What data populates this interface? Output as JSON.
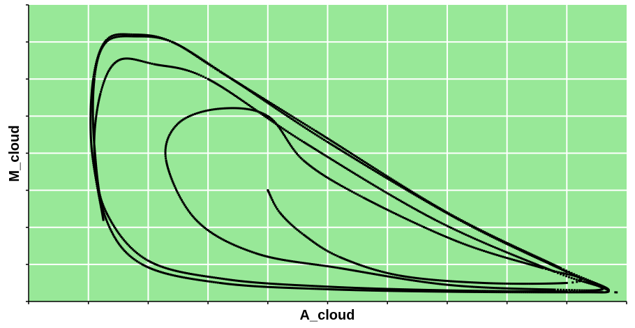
{
  "chart_data": {
    "type": "scatter",
    "xlabel": "A_cloud",
    "ylabel": "M_cloud",
    "xlim": [
      0,
      100
    ],
    "ylim": [
      0,
      80
    ],
    "x_ticks": [
      0,
      10,
      20,
      30,
      40,
      50,
      60,
      70,
      80,
      90,
      100
    ],
    "y_ticks": [
      0,
      10,
      20,
      30,
      40,
      50,
      60,
      70,
      80
    ],
    "tick_labels_shown": false,
    "grid": true,
    "colors": {
      "plot_background": "#98e898",
      "grid": "#ffffff",
      "points": "#000000",
      "axes": "#000000"
    },
    "series": [
      {
        "marker": "small-square",
        "start": [
          40,
          30
        ],
        "points": [
          [
            40,
            30
          ],
          [
            42,
            24
          ],
          [
            46,
            18
          ],
          [
            52,
            12
          ],
          [
            62,
            7
          ],
          [
            76,
            5
          ],
          [
            90,
            5
          ],
          [
            92,
            6.5
          ],
          [
            86,
            9
          ],
          [
            72,
            16
          ],
          [
            56,
            28
          ],
          [
            46,
            38
          ],
          [
            40,
            50
          ],
          [
            32,
            52
          ],
          [
            25,
            48
          ],
          [
            23,
            38
          ],
          [
            28,
            22
          ],
          [
            38,
            13
          ],
          [
            52,
            9
          ],
          [
            70,
            4.5
          ],
          [
            88,
            3.2
          ],
          [
            96,
            3.5
          ],
          [
            88,
            8
          ],
          [
            68,
            22
          ],
          [
            46,
            43
          ],
          [
            30,
            60
          ],
          [
            21,
            64
          ],
          [
            15,
            65
          ],
          [
            12,
            56
          ],
          [
            11,
            40
          ],
          [
            13,
            24
          ],
          [
            20,
            11
          ],
          [
            33,
            6
          ],
          [
            50,
            4
          ],
          [
            70,
            3
          ],
          [
            90,
            2.7
          ],
          [
            97,
            3
          ],
          [
            89,
            9
          ],
          [
            70,
            24
          ],
          [
            48,
            46
          ],
          [
            32,
            62
          ],
          [
            24,
            70
          ],
          [
            18,
            71.5
          ],
          [
            13,
            70
          ],
          [
            11,
            60
          ],
          [
            11,
            42
          ],
          [
            13,
            22
          ],
          [
            19,
            10
          ],
          [
            32,
            5
          ],
          [
            50,
            3.3
          ],
          [
            72,
            2.6
          ],
          [
            96,
            2.5
          ],
          [
            97,
            3
          ],
          [
            90,
            8
          ],
          [
            72,
            22
          ],
          [
            50,
            43
          ],
          [
            34,
            60
          ],
          [
            24,
            70
          ],
          [
            17.5,
            72
          ],
          [
            13,
            70.5
          ],
          [
            10.8,
            60
          ],
          [
            10.5,
            42
          ],
          [
            12.5,
            22
          ]
        ]
      }
    ]
  }
}
